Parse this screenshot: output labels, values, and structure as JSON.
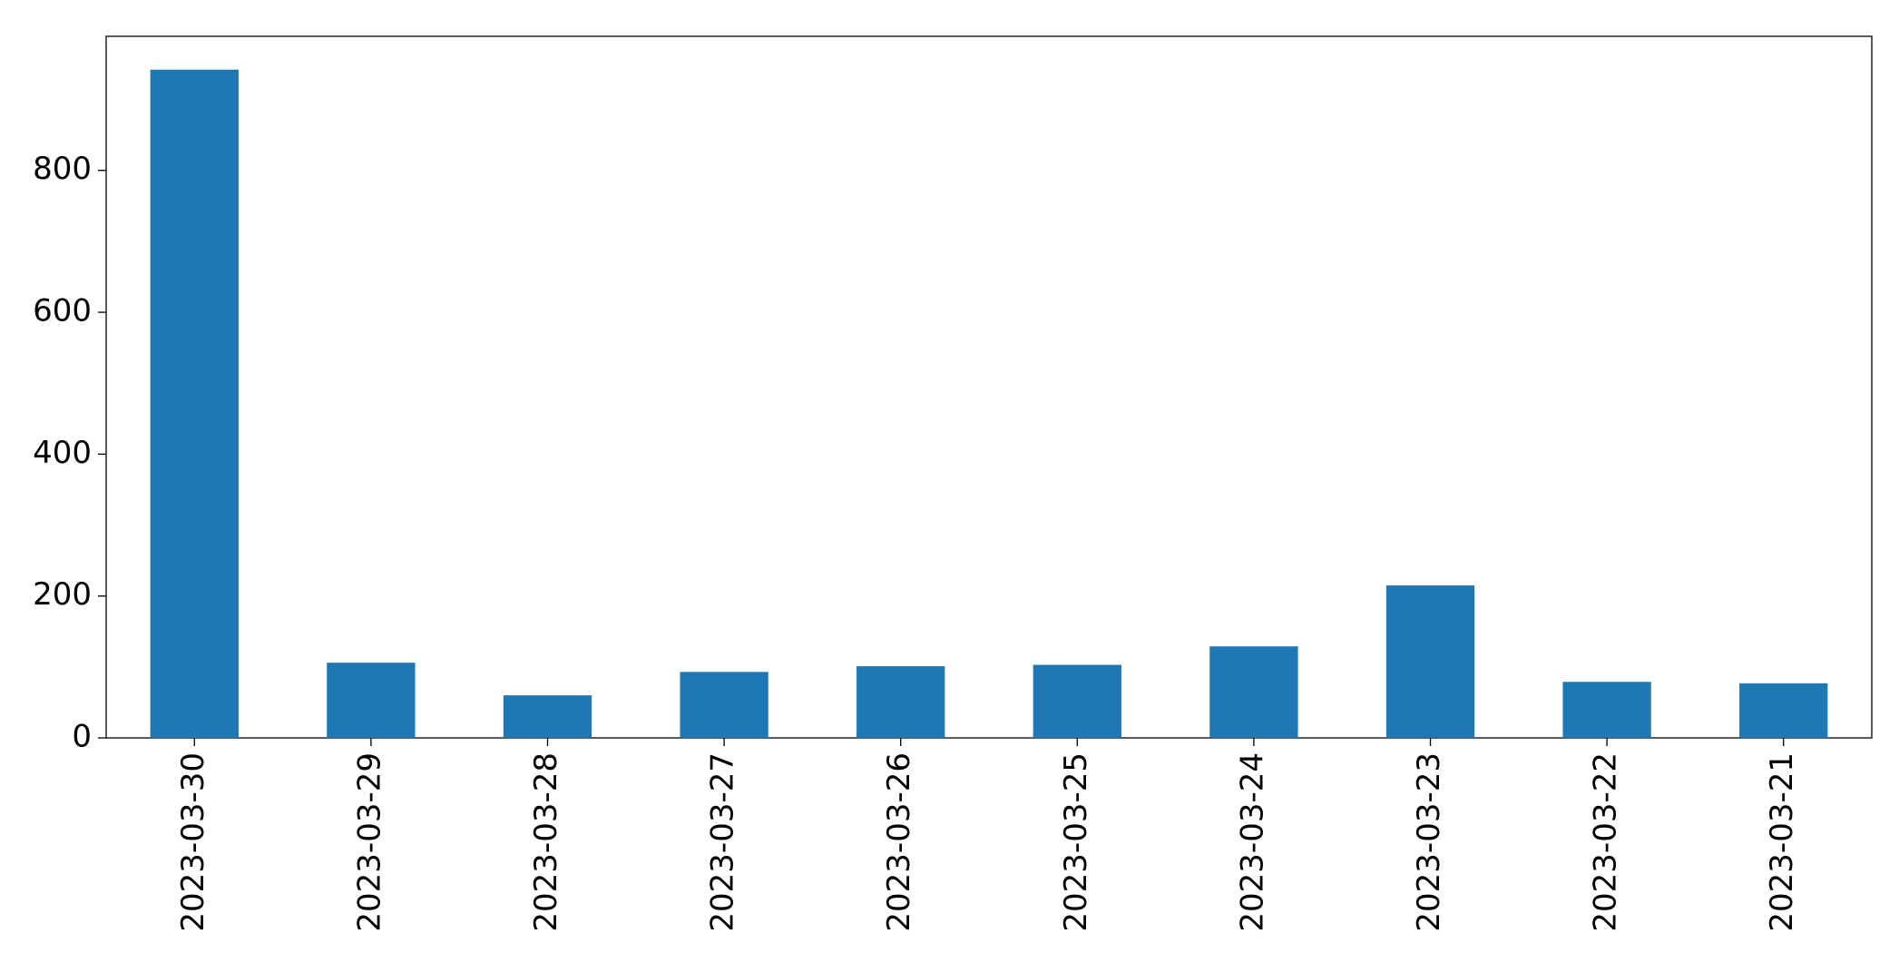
{
  "chart_data": {
    "type": "bar",
    "categories": [
      "2023-03-30",
      "2023-03-29",
      "2023-03-28",
      "2023-03-27",
      "2023-03-26",
      "2023-03-25",
      "2023-03-24",
      "2023-03-23",
      "2023-03-22",
      "2023-03-21"
    ],
    "values": [
      942,
      106,
      60,
      93,
      101,
      103,
      129,
      215,
      79,
      77
    ],
    "color": "#1f77b4",
    "ylim": [
      0,
      989
    ],
    "yticks": [
      0,
      200,
      400,
      600,
      800
    ],
    "grid": false
  }
}
